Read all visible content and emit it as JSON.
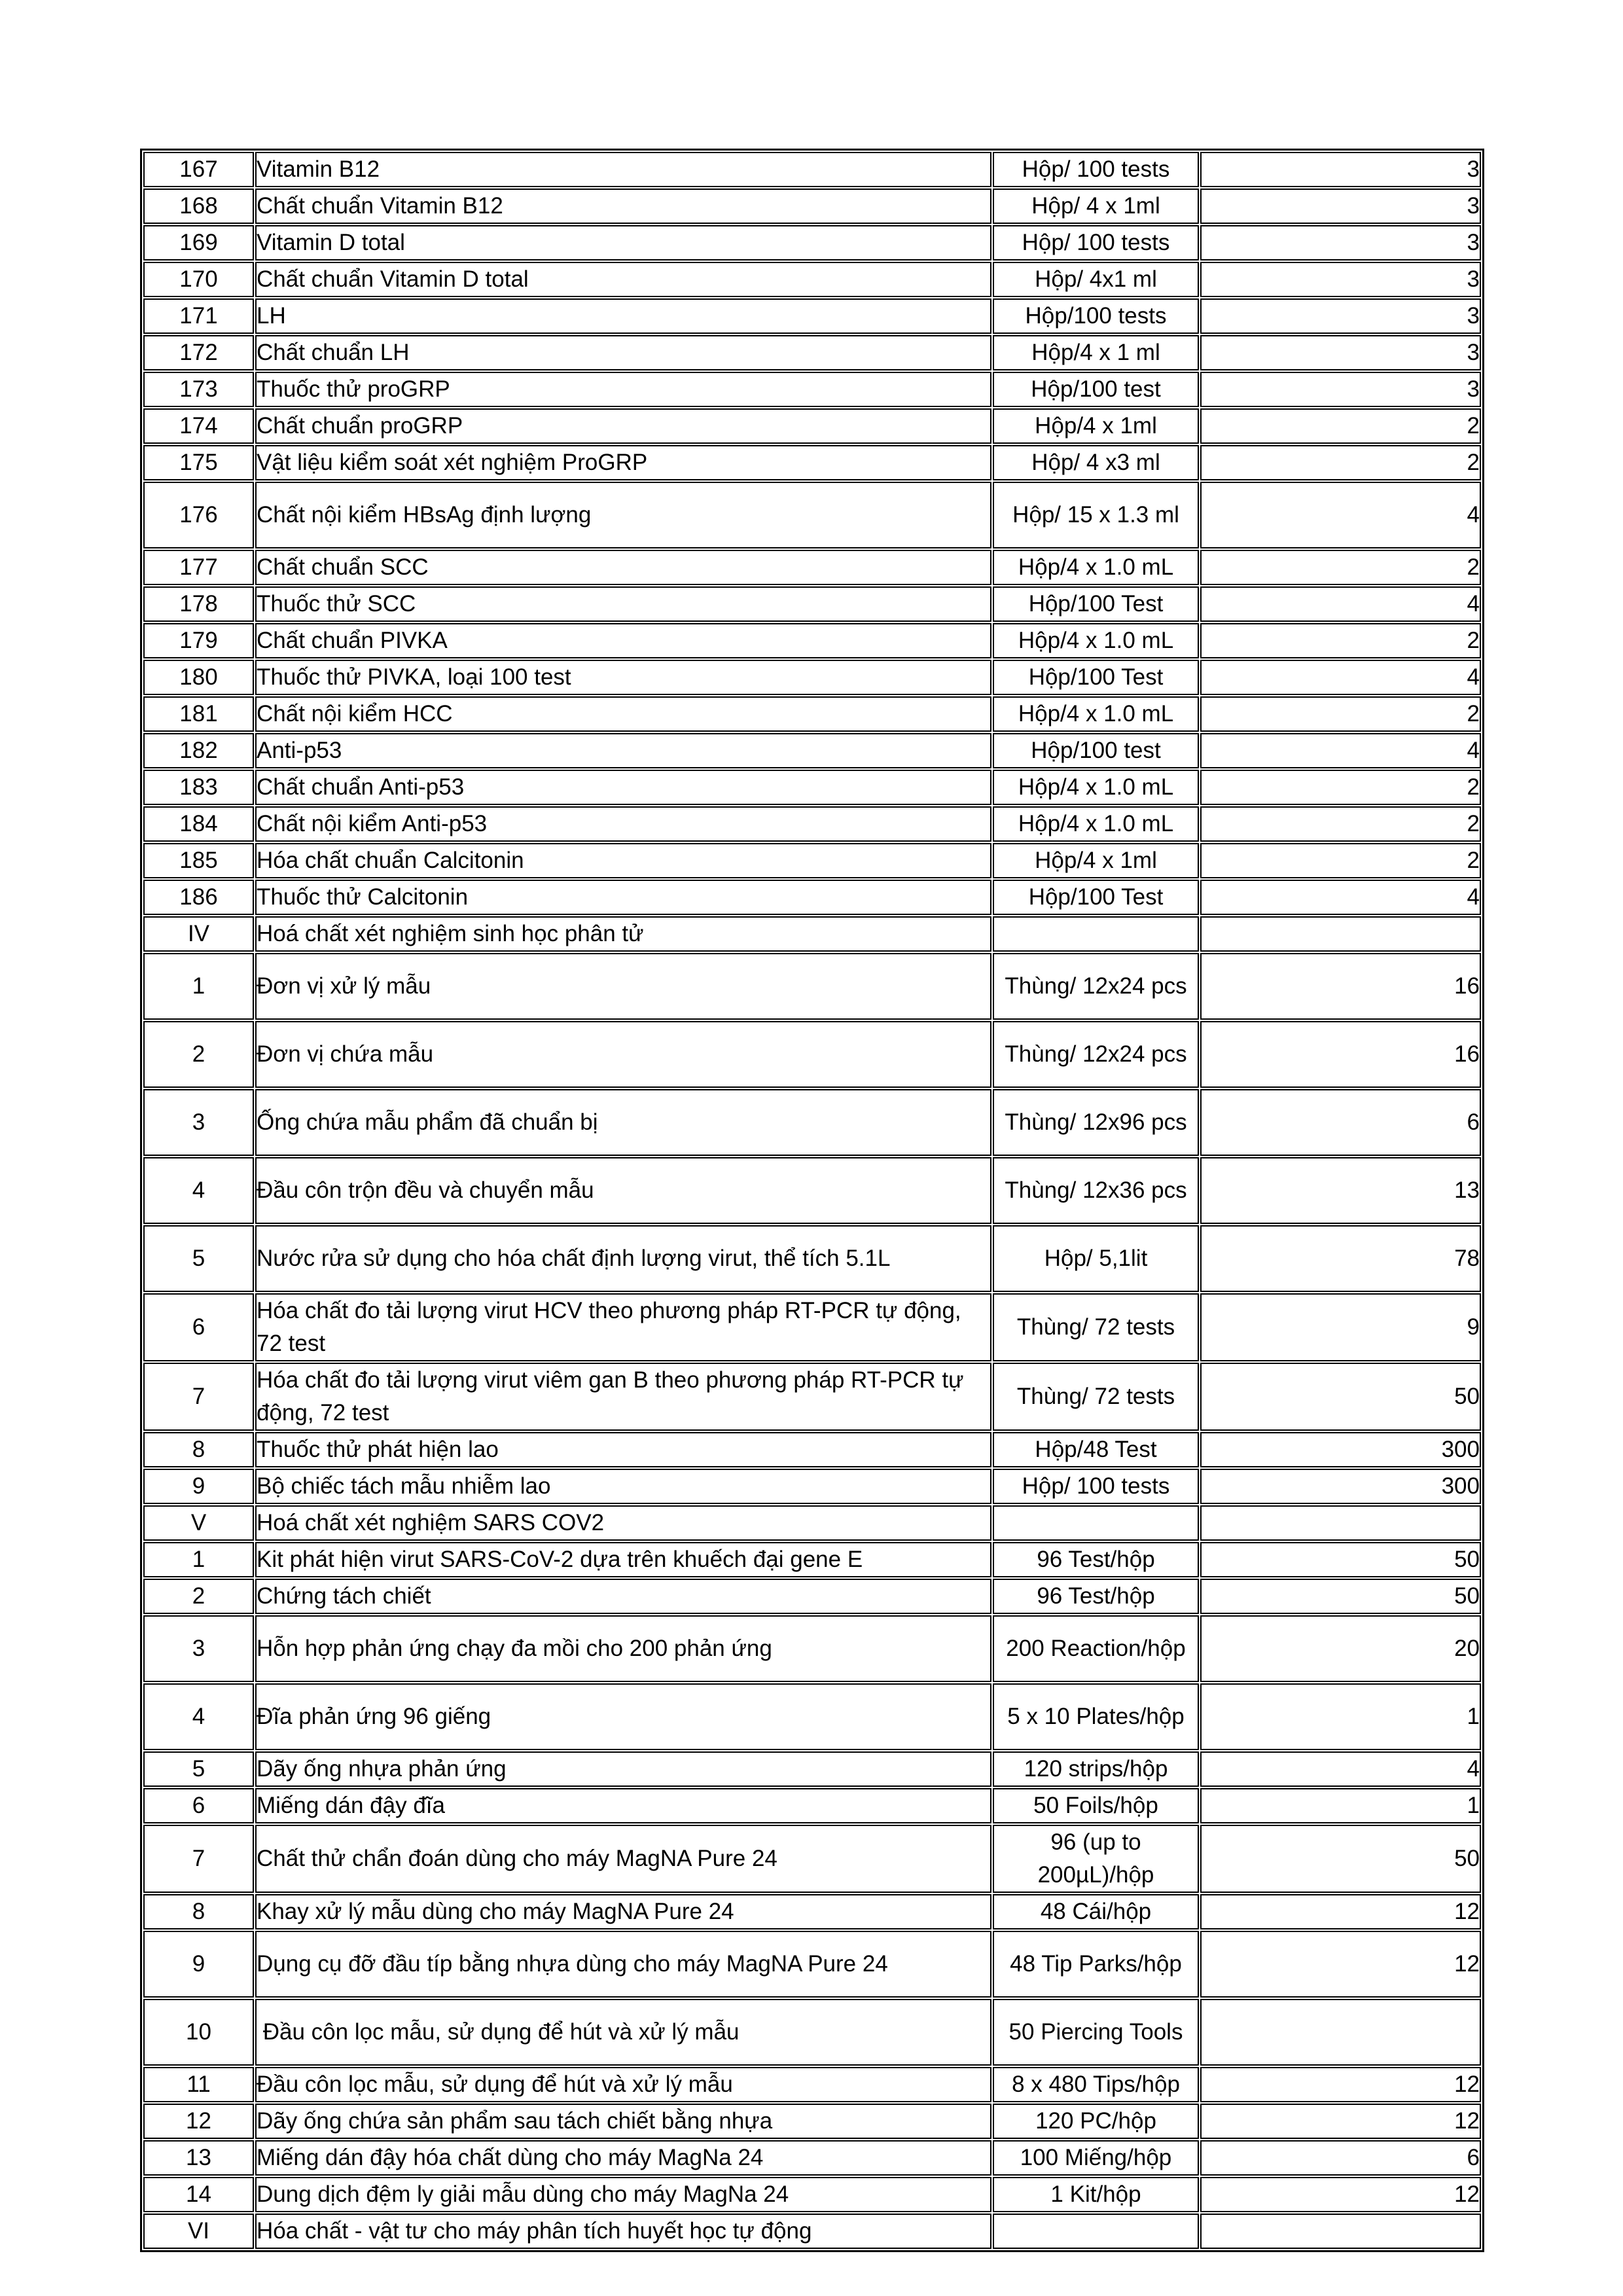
{
  "table": {
    "rows": [
      {
        "no": "167",
        "name": "Vitamin B12",
        "unit": "Hộp/ 100 tests",
        "qty": "3",
        "tall": false
      },
      {
        "no": "168",
        "name": "Chất chuẩn Vitamin B12",
        "unit": "Hộp/ 4 x 1ml",
        "qty": "3",
        "tall": false
      },
      {
        "no": "169",
        "name": "Vitamin D total",
        "unit": "Hộp/ 100 tests",
        "qty": "3",
        "tall": false
      },
      {
        "no": "170",
        "name": "Chất chuẩn Vitamin D total",
        "unit": "Hộp/ 4x1 ml",
        "qty": "3",
        "tall": false
      },
      {
        "no": "171",
        "name": "LH",
        "unit": "Hộp/100 tests",
        "qty": "3",
        "tall": false
      },
      {
        "no": "172",
        "name": "Chất chuẩn LH",
        "unit": "Hộp/4 x 1 ml",
        "qty": "3",
        "tall": false
      },
      {
        "no": "173",
        "name": "Thuốc thử proGRP",
        "unit": "Hộp/100 test",
        "qty": "3",
        "tall": false
      },
      {
        "no": "174",
        "name": "Chất chuẩn proGRP",
        "unit": "Hộp/4 x 1ml",
        "qty": "2",
        "tall": false
      },
      {
        "no": "175",
        "name": "Vật liệu kiểm soát xét nghiệm ProGRP",
        "unit": "Hộp/ 4 x3 ml",
        "qty": "2",
        "tall": false
      },
      {
        "no": "176",
        "name": "Chất nội kiểm HBsAg định lượng",
        "unit": "Hộp/ 15 x 1.3 ml",
        "qty": "4",
        "tall": true
      },
      {
        "no": "177",
        "name": "Chất chuẩn SCC",
        "unit": "Hộp/4 x 1.0 mL",
        "qty": "2",
        "tall": false
      },
      {
        "no": "178",
        "name": "Thuốc thử SCC",
        "unit": "Hộp/100 Test",
        "qty": "4",
        "tall": false
      },
      {
        "no": "179",
        "name": "Chất chuẩn PIVKA",
        "unit": "Hộp/4 x 1.0 mL",
        "qty": "2",
        "tall": false
      },
      {
        "no": "180",
        "name": "Thuốc thử PIVKA, loại 100 test",
        "unit": "Hộp/100 Test",
        "qty": "4",
        "tall": false
      },
      {
        "no": "181",
        "name": "Chất nội kiểm HCC",
        "unit": "Hộp/4 x 1.0 mL",
        "qty": "2",
        "tall": false
      },
      {
        "no": "182",
        "name": "Anti-p53",
        "unit": "Hộp/100 test",
        "qty": "4",
        "tall": false
      },
      {
        "no": "183",
        "name": "Chất chuẩn Anti-p53",
        "unit": "Hộp/4 x 1.0 mL",
        "qty": "2",
        "tall": false
      },
      {
        "no": "184",
        "name": "Chất nội kiểm Anti-p53",
        "unit": "Hộp/4 x 1.0 mL",
        "qty": "2",
        "tall": false
      },
      {
        "no": "185",
        "name": "Hóa chất chuẩn Calcitonin",
        "unit": "Hộp/4 x 1ml",
        "qty": "2",
        "tall": false
      },
      {
        "no": "186",
        "name": "Thuốc thử Calcitonin",
        "unit": "Hộp/100 Test",
        "qty": "4",
        "tall": false
      },
      {
        "no": "IV",
        "name": "Hoá chất xét nghiệm sinh học phân tử",
        "unit": "",
        "qty": "",
        "tall": false
      },
      {
        "no": "1",
        "name": "Đơn vị xử lý mẫu",
        "unit": "Thùng/ 12x24 pcs",
        "qty": "16",
        "tall": true
      },
      {
        "no": "2",
        "name": "Đơn vị chứa mẫu",
        "unit": "Thùng/ 12x24 pcs",
        "qty": "16",
        "tall": true
      },
      {
        "no": "3",
        "name": "Ống chứa mẫu phẩm đã chuẩn bị",
        "unit": "Thùng/ 12x96 pcs",
        "qty": "6",
        "tall": true
      },
      {
        "no": "4",
        "name": "Đầu côn trộn đều và chuyển mẫu",
        "unit": "Thùng/ 12x36 pcs",
        "qty": "13",
        "tall": true
      },
      {
        "no": "5",
        "name": "Nước rửa sử dụng cho hóa chất định lượng virut, thể tích 5.1L",
        "unit": "Hộp/ 5,1lit",
        "qty": "78",
        "tall": true
      },
      {
        "no": "6",
        "name": "Hóa chất đo tải lượng virut HCV theo phương pháp RT-PCR tự động, 72 test",
        "unit": "Thùng/ 72 tests",
        "qty": "9",
        "tall": true
      },
      {
        "no": "7",
        "name": "Hóa chất đo tải lượng virut viêm gan B theo phương pháp RT-PCR tự động, 72 test",
        "unit": "Thùng/ 72 tests",
        "qty": "50",
        "tall": true
      },
      {
        "no": "8",
        "name": "Thuốc thử phát hiện lao",
        "unit": "Hộp/48 Test",
        "qty": "300",
        "tall": false
      },
      {
        "no": "9",
        "name": "Bộ chiếc tách mẫu nhiễm lao",
        "unit": "Hộp/ 100 tests",
        "qty": "300",
        "tall": false
      },
      {
        "no": "V",
        "name": "Hoá chất xét nghiệm SARS COV2",
        "unit": "",
        "qty": "",
        "tall": false
      },
      {
        "no": "1",
        "name": "Kit phát hiện virut SARS-CoV-2 dựa trên khuếch đại gene E",
        "unit": "96 Test/hộp",
        "qty": "50",
        "tall": false
      },
      {
        "no": "2",
        "name": "Chứng tách chiết",
        "unit": "96 Test/hộp",
        "qty": "50",
        "tall": false
      },
      {
        "no": "3",
        "name": "Hỗn hợp phản ứng chạy đa mồi cho 200 phản ứng",
        "unit": "200 Reaction/hộp",
        "qty": "20",
        "tall": true
      },
      {
        "no": "4",
        "name": "Đĩa phản ứng 96 giếng",
        "unit": "5 x 10 Plates/hộp",
        "qty": "1",
        "tall": true
      },
      {
        "no": "5",
        "name": "Dãy ống nhựa phản ứng",
        "unit": "120 strips/hộp",
        "qty": "4",
        "tall": false
      },
      {
        "no": "6",
        "name": "Miếng dán đậy đĩa",
        "unit": "50 Foils/hộp",
        "qty": "1",
        "tall": false
      },
      {
        "no": "7",
        "name": "Chất thử chẩn đoán dùng cho máy MagNA Pure 24",
        "unit": "96 (up to 200µL)/hộp",
        "qty": "50",
        "tall": true
      },
      {
        "no": "8",
        "name": "Khay xử lý mẫu dùng cho máy MagNA Pure 24",
        "unit": "48 Cái/hộp",
        "qty": "12",
        "tall": false
      },
      {
        "no": "9",
        "name": "Dụng cụ đỡ đầu típ bằng nhựa dùng cho máy MagNA Pure 24",
        "unit": "48 Tip Parks/hộp",
        "qty": "12",
        "tall": true
      },
      {
        "no": "10",
        "name": " Đầu côn lọc mẫu, sử dụng để hút và xử lý mẫu",
        "unit": "50 Piercing Tools",
        "qty": "",
        "tall": true
      },
      {
        "no": "11",
        "name": "Đầu côn lọc mẫu, sử dụng để hút và xử lý mẫu",
        "unit": "8 x 480 Tips/hộp",
        "qty": "12",
        "tall": false
      },
      {
        "no": "12",
        "name": "Dãy ống chứa sản phẩm sau tách chiết bằng nhựa",
        "unit": "120 PC/hộp",
        "qty": "12",
        "tall": false
      },
      {
        "no": "13",
        "name": "Miếng dán đậy hóa chất dùng cho máy MagNa 24",
        "unit": "100 Miếng/hộp",
        "qty": "6",
        "tall": false
      },
      {
        "no": "14",
        "name": "Dung dịch đệm ly giải mẫu dùng cho máy MagNa 24",
        "unit": "1 Kit/hộp",
        "qty": "12",
        "tall": false
      },
      {
        "no": "VI",
        "name": "Hóa chất - vật tư cho máy phân tích huyết học tự động",
        "unit": "",
        "qty": "",
        "tall": false
      }
    ]
  }
}
